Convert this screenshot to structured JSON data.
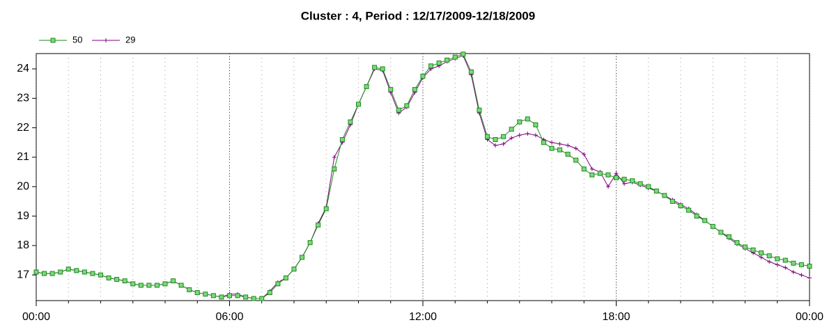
{
  "chart_data": {
    "type": "line",
    "title": "Cluster : 4, Period : 12/17/2009-12/18/2009",
    "x": [
      0,
      0.25,
      0.5,
      0.75,
      1,
      1.25,
      1.5,
      1.75,
      2,
      2.25,
      2.5,
      2.75,
      3,
      3.25,
      3.5,
      3.75,
      4,
      4.25,
      4.5,
      4.75,
      5,
      5.25,
      5.5,
      5.75,
      6,
      6.25,
      6.5,
      6.75,
      7,
      7.25,
      7.5,
      7.75,
      8,
      8.25,
      8.5,
      8.75,
      9,
      9.25,
      9.5,
      9.75,
      10,
      10.25,
      10.5,
      10.75,
      11,
      11.25,
      11.5,
      11.75,
      12,
      12.25,
      12.5,
      12.75,
      13,
      13.25,
      13.5,
      13.75,
      14,
      14.25,
      14.5,
      14.75,
      15,
      15.25,
      15.5,
      15.75,
      16,
      16.25,
      16.5,
      16.75,
      17,
      17.25,
      17.5,
      17.75,
      18,
      18.25,
      18.5,
      18.75,
      19,
      19.25,
      19.5,
      19.75,
      20,
      20.25,
      20.5,
      20.75,
      21,
      21.25,
      21.5,
      21.75,
      22,
      22.25,
      22.5,
      22.75,
      23,
      23.25,
      23.5,
      23.75,
      24
    ],
    "series": [
      {
        "name": "50",
        "color": "#1a8a1a",
        "marker": "square",
        "values": [
          17.1,
          17.05,
          17.05,
          17.1,
          17.2,
          17.15,
          17.1,
          17.05,
          17.0,
          16.9,
          16.85,
          16.8,
          16.7,
          16.65,
          16.65,
          16.65,
          16.7,
          16.8,
          16.65,
          16.5,
          16.4,
          16.35,
          16.3,
          16.25,
          16.3,
          16.3,
          16.25,
          16.2,
          16.2,
          16.4,
          16.7,
          16.9,
          17.2,
          17.6,
          18.1,
          18.7,
          19.25,
          20.6,
          21.6,
          22.2,
          22.8,
          23.4,
          24.05,
          24.0,
          23.3,
          22.6,
          22.75,
          23.3,
          23.75,
          24.1,
          24.2,
          24.3,
          24.4,
          24.5,
          23.9,
          22.6,
          21.7,
          21.6,
          21.7,
          21.95,
          22.2,
          22.3,
          22.1,
          21.5,
          21.3,
          21.25,
          21.1,
          20.9,
          20.6,
          20.4,
          20.45,
          20.4,
          20.3,
          20.25,
          20.2,
          20.1,
          20.0,
          19.85,
          19.7,
          19.5,
          19.35,
          19.2,
          19.0,
          18.85,
          18.65,
          18.45,
          18.3,
          18.1,
          17.95,
          17.85,
          17.75,
          17.65,
          17.55,
          17.5,
          17.4,
          17.35,
          17.3
        ]
      },
      {
        "name": "29",
        "color": "#800080",
        "marker": "plus",
        "values": [
          17.1,
          17.05,
          17.05,
          17.1,
          17.2,
          17.15,
          17.1,
          17.05,
          17.0,
          16.9,
          16.85,
          16.8,
          16.7,
          16.65,
          16.65,
          16.65,
          16.7,
          16.8,
          16.65,
          16.5,
          16.4,
          16.35,
          16.3,
          16.25,
          16.35,
          16.35,
          16.25,
          16.2,
          16.2,
          16.45,
          16.75,
          16.9,
          17.2,
          17.6,
          18.1,
          18.75,
          19.3,
          21.0,
          21.5,
          22.1,
          22.8,
          23.4,
          24.0,
          23.95,
          23.2,
          22.5,
          22.7,
          23.2,
          23.7,
          24.0,
          24.1,
          24.25,
          24.35,
          24.45,
          23.8,
          22.5,
          21.6,
          21.4,
          21.45,
          21.65,
          21.75,
          21.8,
          21.75,
          21.6,
          21.5,
          21.45,
          21.4,
          21.3,
          21.1,
          20.6,
          20.5,
          20.0,
          20.45,
          20.1,
          20.15,
          20.05,
          19.95,
          19.85,
          19.7,
          19.55,
          19.4,
          19.25,
          19.05,
          18.85,
          18.65,
          18.45,
          18.25,
          18.05,
          17.9,
          17.75,
          17.6,
          17.45,
          17.35,
          17.25,
          17.1,
          17.0,
          16.9
        ]
      }
    ],
    "xlim": [
      0,
      24
    ],
    "xticks": [
      {
        "value": 0,
        "label": "00:00"
      },
      {
        "value": 6,
        "label": "06:00"
      },
      {
        "value": 12,
        "label": "12:00"
      },
      {
        "value": 18,
        "label": "18:00"
      },
      {
        "value": 24,
        "label": "00:00"
      }
    ],
    "ylim": [
      16.13,
      24.52
    ],
    "yticks": [
      17,
      18,
      19,
      20,
      21,
      22,
      23,
      24
    ],
    "legend": "top-left"
  }
}
